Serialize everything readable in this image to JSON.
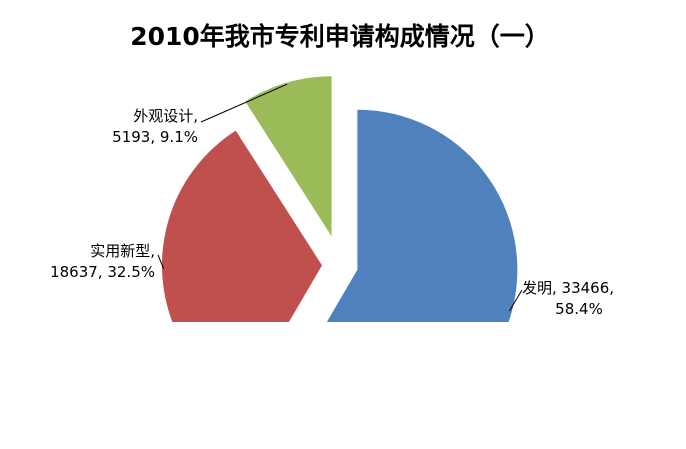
{
  "chart_data": {
    "type": "pie",
    "title": "2010年我市专利申请构成情况（一）",
    "slices": [
      {
        "name": "发明",
        "value": 33466,
        "percent": "58.4%",
        "color": "#4F81BD",
        "label_line1": "发明, 33466,",
        "label_line2": "58.4%"
      },
      {
        "name": "实用新型",
        "value": 18637,
        "percent": "32.5%",
        "color": "#C0504D",
        "label_line1": "实用新型,",
        "label_line2": "18637, 32.5%"
      },
      {
        "name": "外观设计",
        "value": 5193,
        "percent": "9.1%",
        "color": "#9BBB59",
        "label_line1": "外观设计,",
        "label_line2": "5193, 9.1%"
      }
    ],
    "legend": "none"
  }
}
